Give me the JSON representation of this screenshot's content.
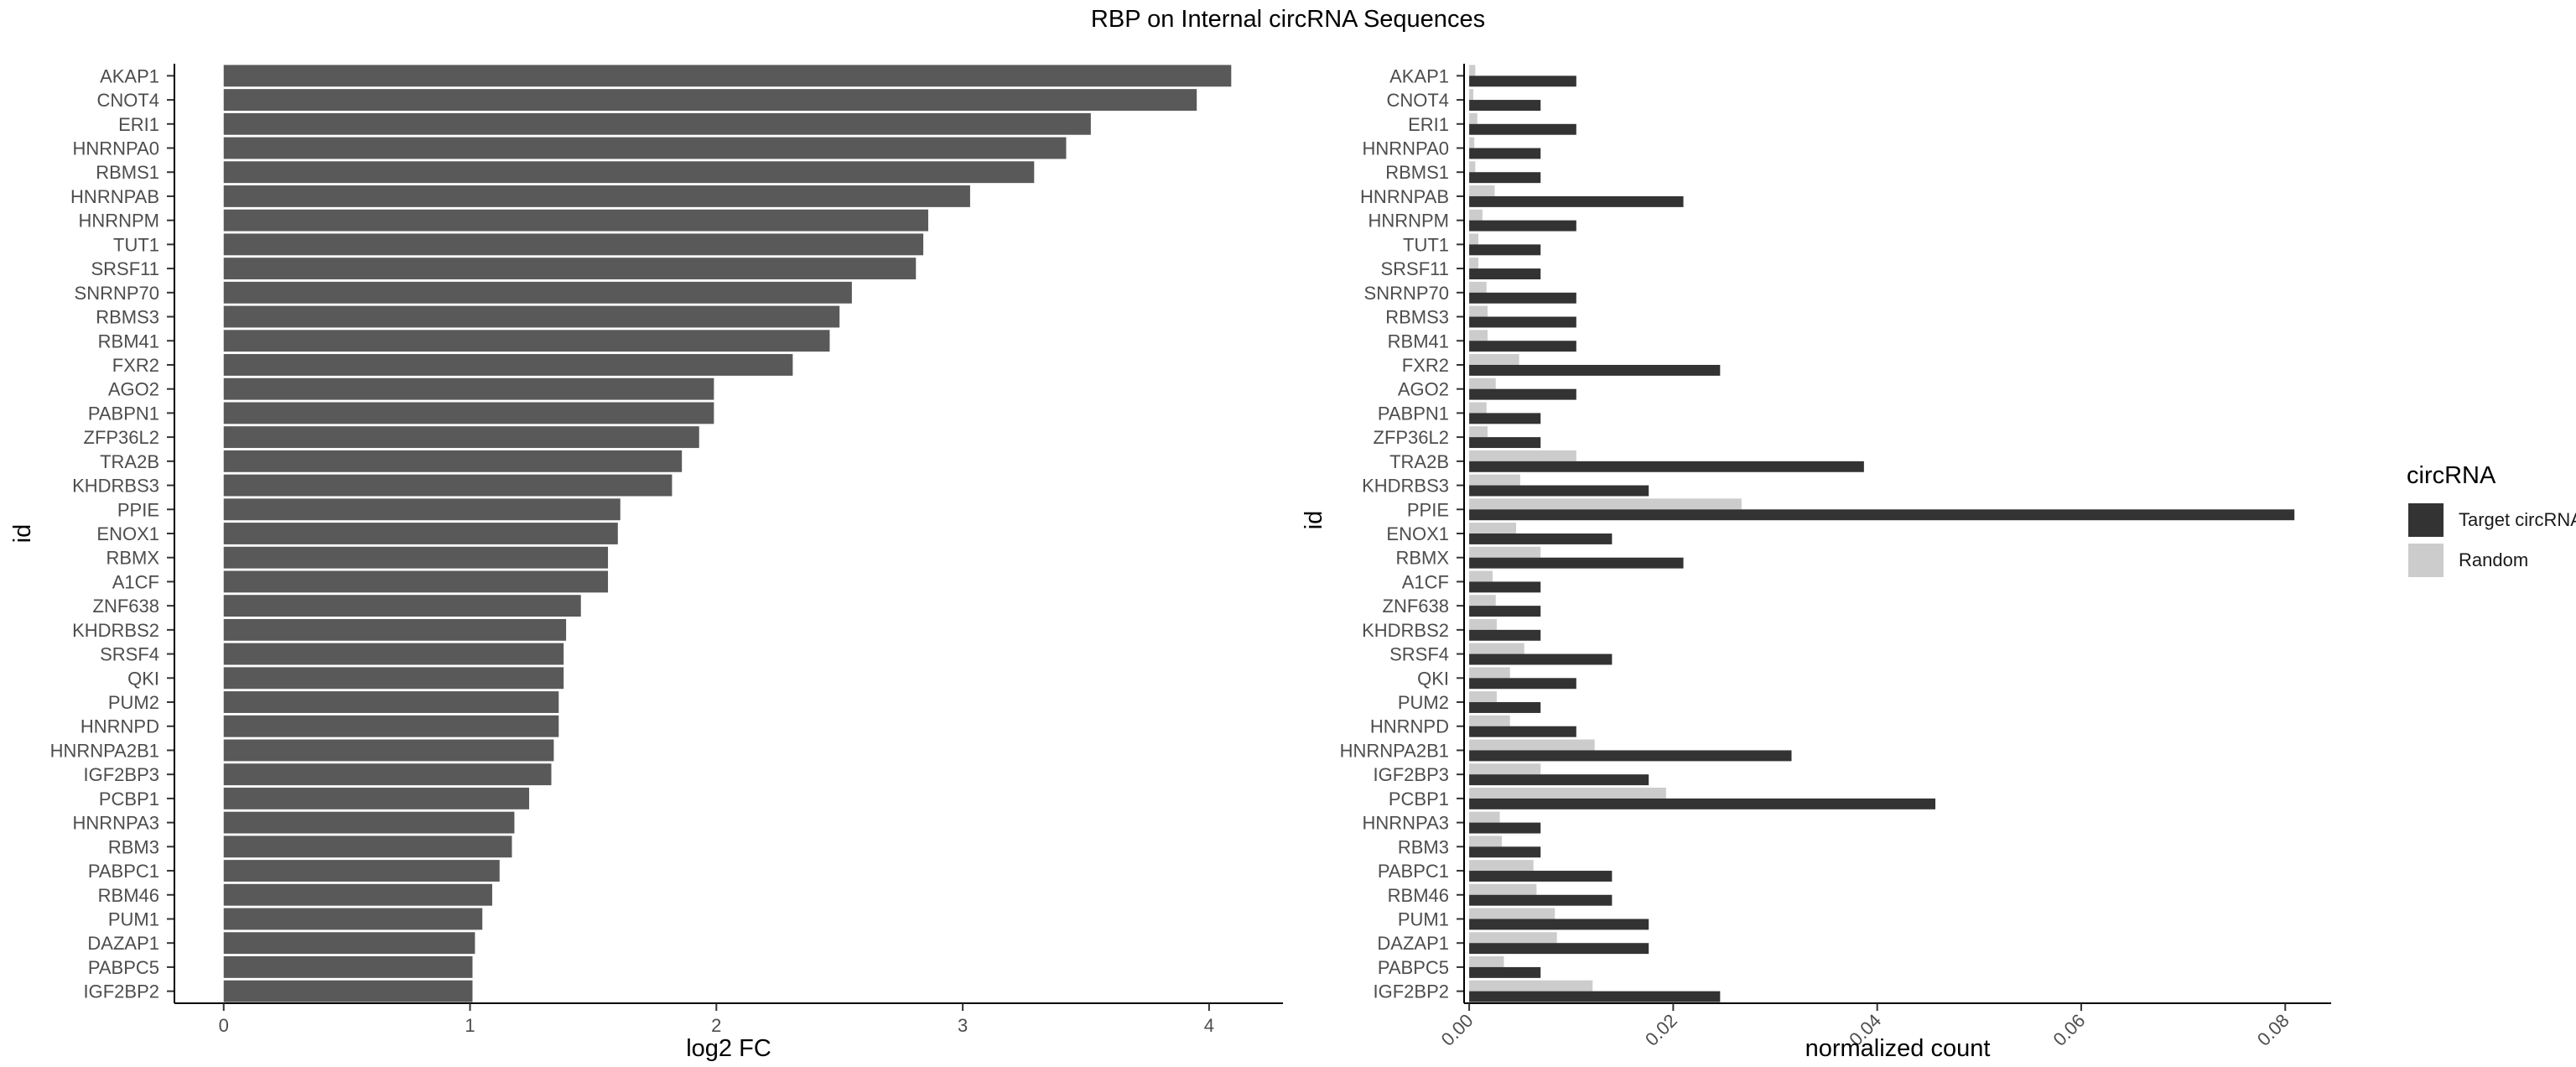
{
  "title": "RBP on Internal circRNA Sequences",
  "chart_data": [
    {
      "type": "bar",
      "orientation": "horizontal",
      "xlabel": "log2 FC",
      "ylabel": "id",
      "xlim": [
        -0.2,
        4.3
      ],
      "xticks": [
        "0",
        "1",
        "2",
        "3",
        "4"
      ],
      "bar_color": "#595959",
      "categories": [
        "AKAP1",
        "CNOT4",
        "ERI1",
        "HNRNPA0",
        "RBMS1",
        "HNRNPAB",
        "HNRNPM",
        "TUT1",
        "SRSF11",
        "SNRNP70",
        "RBMS3",
        "RBM41",
        "FXR2",
        "AGO2",
        "PABPN1",
        "ZFP36L2",
        "TRA2B",
        "KHDRBS3",
        "PPIE",
        "ENOX1",
        "RBMX",
        "A1CF",
        "ZNF638",
        "KHDRBS2",
        "SRSF4",
        "QKI",
        "PUM2",
        "HNRNPD",
        "HNRNPA2B1",
        "IGF2BP3",
        "PCBP1",
        "HNRNPA3",
        "RBM3",
        "PABPC1",
        "RBM46",
        "PUM1",
        "DAZAP1",
        "PABPC5",
        "IGF2BP2"
      ],
      "values": [
        4.09,
        3.95,
        3.52,
        3.42,
        3.29,
        3.03,
        2.86,
        2.84,
        2.81,
        2.55,
        2.5,
        2.46,
        2.31,
        1.99,
        1.99,
        1.93,
        1.86,
        1.82,
        1.61,
        1.6,
        1.56,
        1.56,
        1.45,
        1.39,
        1.38,
        1.38,
        1.36,
        1.36,
        1.34,
        1.33,
        1.24,
        1.18,
        1.17,
        1.12,
        1.09,
        1.05,
        1.02,
        1.01,
        1.01
      ]
    },
    {
      "type": "bar",
      "orientation": "horizontal",
      "xlabel": "normalized count",
      "ylabel": "id",
      "xlim": [
        -0.0005,
        0.0845
      ],
      "xticks": [
        "0.00",
        "0.02",
        "0.04",
        "0.06",
        "0.08"
      ],
      "legend": {
        "title": "circRNA",
        "position": "right"
      },
      "categories": [
        "AKAP1",
        "CNOT4",
        "ERI1",
        "HNRNPA0",
        "RBMS1",
        "HNRNPAB",
        "HNRNPM",
        "TUT1",
        "SRSF11",
        "SNRNP70",
        "RBMS3",
        "RBM41",
        "FXR2",
        "AGO2",
        "PABPN1",
        "ZFP36L2",
        "TRA2B",
        "KHDRBS3",
        "PPIE",
        "ENOX1",
        "RBMX",
        "A1CF",
        "ZNF638",
        "KHDRBS2",
        "SRSF4",
        "QKI",
        "PUM2",
        "HNRNPD",
        "HNRNPA2B1",
        "IGF2BP3",
        "PCBP1",
        "HNRNPA3",
        "RBM3",
        "PABPC1",
        "RBM46",
        "PUM1",
        "DAZAP1",
        "PABPC5",
        "IGF2BP2"
      ],
      "series": [
        {
          "name": "Target circRNAs",
          "color": "#333333",
          "values": [
            0.0105,
            0.007,
            0.0105,
            0.007,
            0.007,
            0.021,
            0.0105,
            0.007,
            0.007,
            0.0105,
            0.0105,
            0.0105,
            0.0246,
            0.0105,
            0.007,
            0.007,
            0.0387,
            0.0176,
            0.0809,
            0.014,
            0.021,
            0.007,
            0.007,
            0.007,
            0.014,
            0.0105,
            0.007,
            0.0105,
            0.0316,
            0.0176,
            0.0457,
            0.007,
            0.007,
            0.014,
            0.014,
            0.0176,
            0.0176,
            0.007,
            0.0246
          ]
        },
        {
          "name": "Random",
          "color": "#cccccc",
          "values": [
            0.0006,
            0.0004,
            0.0008,
            0.0005,
            0.0006,
            0.0025,
            0.0013,
            0.0009,
            0.0009,
            0.0017,
            0.0018,
            0.0018,
            0.0049,
            0.0026,
            0.0017,
            0.0018,
            0.0105,
            0.005,
            0.0267,
            0.0046,
            0.007,
            0.0023,
            0.0026,
            0.0027,
            0.0054,
            0.004,
            0.0027,
            0.004,
            0.0123,
            0.007,
            0.0193,
            0.003,
            0.0032,
            0.0063,
            0.0066,
            0.0084,
            0.0086,
            0.0034,
            0.0121
          ]
        }
      ]
    }
  ]
}
